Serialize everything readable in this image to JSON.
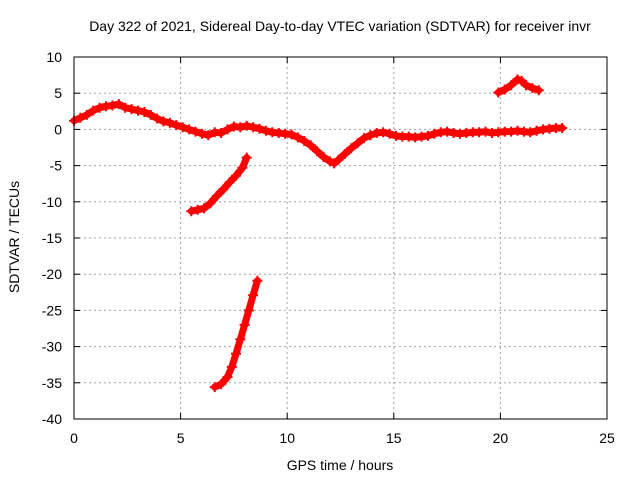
{
  "chart_data": {
    "type": "scatter",
    "title": "Day 322 of 2021, Sidereal Day-to-day VTEC variation (SDTVAR) for receiver invr",
    "xlabel": "GPS time / hours",
    "ylabel": "SDTVAR / TECUs",
    "xlim": [
      0,
      25
    ],
    "ylim": [
      -40,
      10
    ],
    "xticks": [
      0,
      5,
      10,
      15,
      20,
      25
    ],
    "yticks": [
      10,
      5,
      0,
      -5,
      -10,
      -15,
      -20,
      -25,
      -30,
      -35,
      -40
    ],
    "xtick_labels": [
      "0",
      "5",
      "10",
      "15",
      "20",
      "25"
    ],
    "ytick_labels": [
      "10",
      "5",
      "0",
      "-5",
      "-10",
      "-15",
      "-20",
      "-25",
      "-30",
      "-35",
      "-40"
    ],
    "grid": true,
    "legend": "none",
    "colors": {
      "series": "#ff0000",
      "grid": "#a0a0a0",
      "axis": "#000000"
    },
    "series": [
      {
        "name": "main-track",
        "x": [
          0.0,
          0.3,
          0.6,
          0.9,
          1.2,
          1.5,
          1.8,
          2.1,
          2.4,
          2.7,
          3.0,
          3.3,
          3.6,
          3.9,
          4.2,
          4.5,
          4.8,
          5.1,
          5.4,
          5.7,
          6.0,
          6.3,
          6.6,
          6.9,
          7.2,
          7.5,
          7.8,
          8.1,
          8.4,
          8.7,
          9.0,
          9.3,
          9.6,
          9.9,
          10.2,
          10.5,
          10.8,
          11.1,
          11.4,
          11.7,
          12.0,
          12.2,
          12.4,
          12.7,
          13.0,
          13.3,
          13.6,
          13.9,
          14.2,
          14.5,
          14.8,
          15.1,
          15.4,
          15.7,
          16.0,
          16.3,
          16.6,
          16.9,
          17.2,
          17.5,
          17.8,
          18.1,
          18.4,
          18.7,
          19.0,
          19.3,
          19.6,
          19.9,
          20.2,
          20.5,
          20.8,
          21.1,
          21.4,
          21.7,
          22.0,
          22.3,
          22.6,
          22.9
        ],
        "y": [
          1.2,
          1.6,
          2.0,
          2.6,
          3.0,
          3.2,
          3.3,
          3.5,
          3.0,
          2.8,
          2.6,
          2.4,
          2.0,
          1.5,
          1.1,
          0.9,
          0.6,
          0.3,
          0.0,
          -0.3,
          -0.6,
          -0.8,
          -0.4,
          -0.5,
          0.0,
          0.4,
          0.3,
          0.5,
          0.3,
          0.1,
          -0.2,
          -0.4,
          -0.5,
          -0.6,
          -0.7,
          -1.1,
          -1.6,
          -2.2,
          -3.0,
          -3.8,
          -4.4,
          -4.7,
          -4.2,
          -3.4,
          -2.6,
          -1.9,
          -1.2,
          -0.8,
          -0.5,
          -0.4,
          -0.6,
          -0.9,
          -1.0,
          -1.0,
          -1.1,
          -1.0,
          -0.9,
          -0.6,
          -0.4,
          -0.3,
          -0.5,
          -0.6,
          -0.5,
          -0.4,
          -0.4,
          -0.3,
          -0.5,
          -0.4,
          -0.3,
          -0.3,
          -0.2,
          -0.3,
          -0.4,
          -0.2,
          0.0,
          0.1,
          0.2,
          0.2
        ]
      },
      {
        "name": "upper-right-arc",
        "x": [
          19.9,
          20.2,
          20.5,
          20.8,
          21.0,
          21.2,
          21.5,
          21.8
        ],
        "y": [
          5.1,
          5.5,
          6.1,
          6.9,
          6.7,
          6.1,
          5.7,
          5.4
        ]
      },
      {
        "name": "rising-arc-mid",
        "x": [
          5.5,
          5.8,
          6.1,
          6.4,
          6.7,
          7.0,
          7.3,
          7.6,
          7.9,
          8.1
        ],
        "y": [
          -11.3,
          -11.1,
          -10.9,
          -10.2,
          -9.2,
          -8.3,
          -7.3,
          -6.4,
          -5.3,
          -3.9
        ]
      },
      {
        "name": "rising-arc-low",
        "x": [
          6.6,
          6.9,
          7.2,
          7.4,
          7.6,
          7.8,
          8.0,
          8.2,
          8.4,
          8.6
        ],
        "y": [
          -35.6,
          -35.2,
          -34.2,
          -32.8,
          -31.0,
          -29.0,
          -27.0,
          -25.0,
          -22.9,
          -20.9
        ]
      }
    ]
  }
}
